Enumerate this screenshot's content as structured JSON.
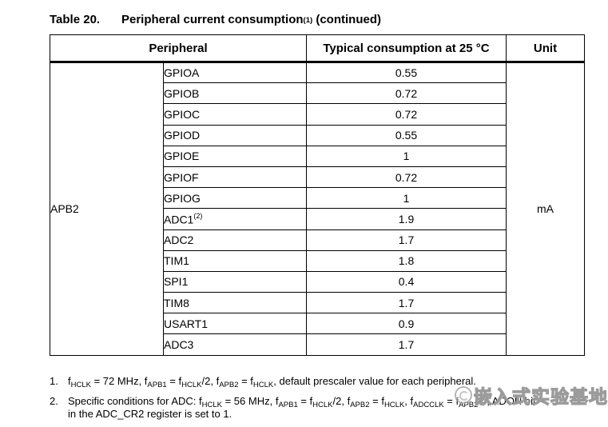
{
  "title": {
    "prefix": "Table 20.",
    "main": "Peripheral current consumption",
    "sup": "(1)",
    "suffix": " (continued)"
  },
  "table": {
    "headers": {
      "peripheral": "Peripheral",
      "consumption": "Typical consumption at 25 °C",
      "unit": "Unit"
    },
    "group_label": "APB2",
    "unit_value": "mA",
    "rows": [
      {
        "name": "GPIOA",
        "sup": "",
        "value": "0.55"
      },
      {
        "name": "GPIOB",
        "sup": "",
        "value": "0.72"
      },
      {
        "name": "GPIOC",
        "sup": "",
        "value": "0.72"
      },
      {
        "name": "GPIOD",
        "sup": "",
        "value": "0.55"
      },
      {
        "name": "GPIOE",
        "sup": "",
        "value": "1"
      },
      {
        "name": "GPIOF",
        "sup": "",
        "value": "0.72"
      },
      {
        "name": "GPIOG",
        "sup": "",
        "value": "1"
      },
      {
        "name": "ADC1",
        "sup": "(2)",
        "value": "1.9"
      },
      {
        "name": "ADC2",
        "sup": "",
        "value": "1.7"
      },
      {
        "name": "TIM1",
        "sup": "",
        "value": "1.8"
      },
      {
        "name": "SPI1",
        "sup": "",
        "value": "0.4"
      },
      {
        "name": "TIM8",
        "sup": "",
        "value": "1.7"
      },
      {
        "name": "USART1",
        "sup": "",
        "value": "0.9"
      },
      {
        "name": "ADC3",
        "sup": "",
        "value": "1.7"
      }
    ]
  },
  "footnotes": [
    {
      "num": "1.",
      "segments": [
        {
          "t": "f"
        },
        {
          "t": "HCLK",
          "sub": true
        },
        {
          "t": " = 72 MHz, f"
        },
        {
          "t": "APB1",
          "sub": true
        },
        {
          "t": " = f"
        },
        {
          "t": "HCLK",
          "sub": true
        },
        {
          "t": "/2, f"
        },
        {
          "t": "APB2",
          "sub": true
        },
        {
          "t": " = f"
        },
        {
          "t": "HCLK",
          "sub": true
        },
        {
          "t": ", default prescaler value for each peripheral."
        }
      ]
    },
    {
      "num": "2.",
      "segments": [
        {
          "t": "Specific conditions for ADC: f"
        },
        {
          "t": "HCLK",
          "sub": true
        },
        {
          "t": " = 56 MHz, f"
        },
        {
          "t": "APB1",
          "sub": true
        },
        {
          "t": " = f"
        },
        {
          "t": "HCLK",
          "sub": true
        },
        {
          "t": "/2, f"
        },
        {
          "t": "APB2",
          "sub": true
        },
        {
          "t": " = f"
        },
        {
          "t": "HCLK",
          "sub": true
        },
        {
          "t": ", f"
        },
        {
          "t": "ADCCLK",
          "sub": true
        },
        {
          "t": " = f"
        },
        {
          "t": "APB2",
          "sub": true
        },
        {
          "t": "/4, ADON bit"
        },
        {
          "br": true
        },
        {
          "t": "in the ADC_CR2 register is set to 1."
        }
      ]
    }
  ],
  "watermark": {
    "text": "嵌入式实验基地"
  },
  "colors": {
    "background": "#ffffff",
    "text": "#000000",
    "border": "#000000",
    "watermark_gray": "#999999"
  }
}
